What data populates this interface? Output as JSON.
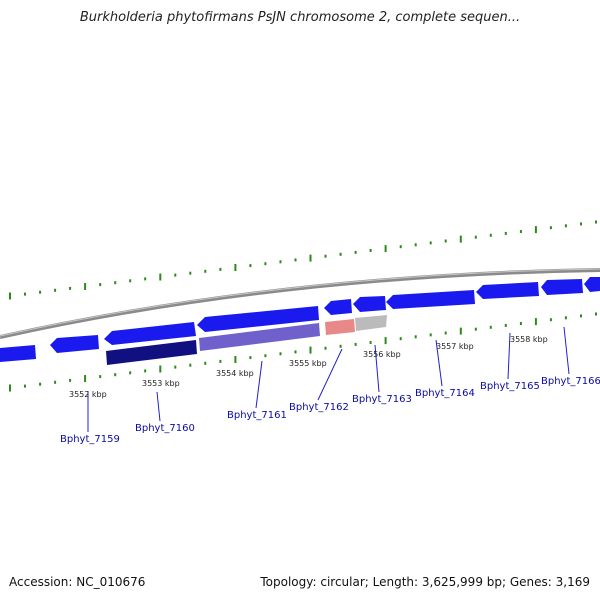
{
  "title": "Burkholderia phytofirmans PsJN chromosome 2, complete sequen...",
  "footer": {
    "accession": "Accession: NC_010676",
    "summary": "Topology: circular; Length: 3,625,999 bp; Genes: 3,169"
  },
  "colors": {
    "backbone": "#8a8a8a",
    "gene_forward": "#1a1aee",
    "gene_dark": "#101080",
    "gene_mid": "#7060cc",
    "gene_pink": "#e88888",
    "gene_grey": "#bbbbbb",
    "tick": "#2a8a1a",
    "label_line": "#2020cc",
    "gene_label": "#0a0aa0"
  },
  "scale_labels": [
    "3552 kbp",
    "3553 kbp",
    "3554 kbp",
    "3555 kbp",
    "3556 kbp",
    "3557 kbp",
    "3558 kbp"
  ],
  "gene_labels": [
    "Bphyt_7159",
    "Bphyt_7160",
    "Bphyt_7161",
    "Bphyt_7162",
    "Bphyt_7163",
    "Bphyt_7164",
    "Bphyt_7165",
    "Bphyt_7166"
  ]
}
